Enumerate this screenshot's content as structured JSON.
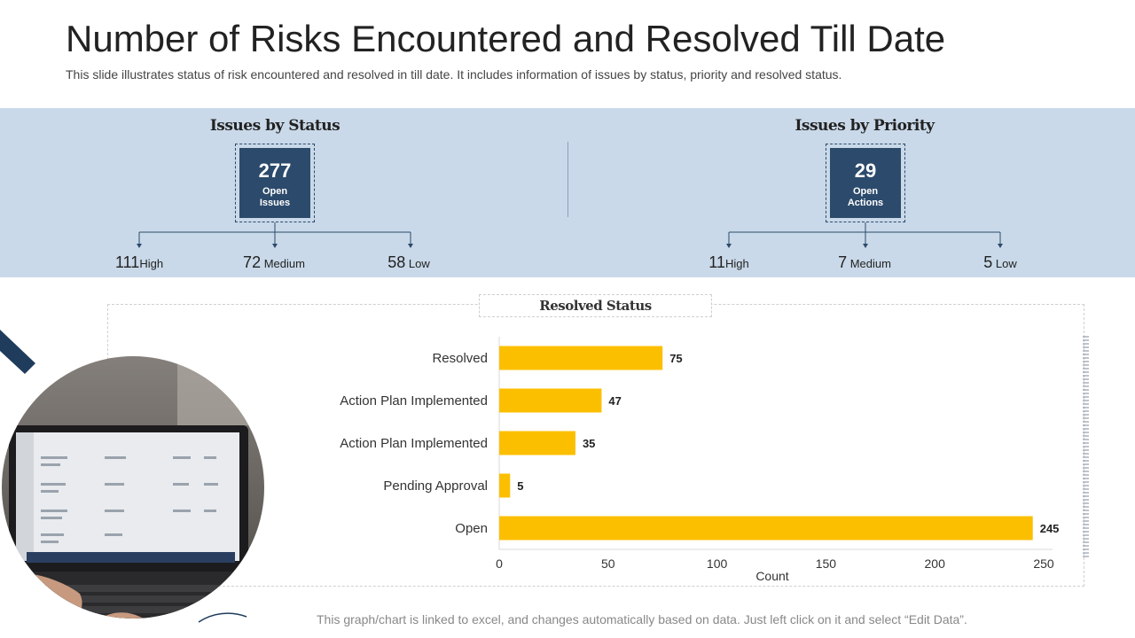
{
  "title": "Number of Risks Encountered and Resolved Till Date",
  "subtitle": "This slide illustrates status of risk encountered and resolved in till date. It includes information of issues by status, priority and resolved status.",
  "status_group": {
    "title": "Issues by Status",
    "kpi_value": "277",
    "kpi_label_1": "Open",
    "kpi_label_2": "Issues",
    "items": [
      {
        "num": "111",
        "label": "High"
      },
      {
        "num": "72",
        "label": " Medium"
      },
      {
        "num": "58",
        "label": " Low"
      }
    ]
  },
  "priority_group": {
    "title": "Issues by Priority",
    "kpi_value": "29",
    "kpi_label_1": "Open",
    "kpi_label_2": "Actions",
    "items": [
      {
        "num": "11",
        "label": "High"
      },
      {
        "num": "7",
        "label": " Medium"
      },
      {
        "num": "5",
        "label": " Low"
      }
    ]
  },
  "chart_title": "Resolved Status",
  "footer": "This graph/chart is linked to excel, and changes automatically based on data.  Just left click on it and select “Edit Data”.",
  "colors": {
    "band": "#c9d9e9",
    "kpi": "#2c4a6b",
    "bar": "#fcbf00"
  },
  "chart_data": {
    "type": "bar",
    "orientation": "horizontal",
    "title": "Resolved Status",
    "categories": [
      "Resolved",
      "Action Plan Implemented",
      "Action Plan Implemented",
      "Pending Approval",
      "Open"
    ],
    "values": [
      75,
      47,
      35,
      5,
      245
    ],
    "xlabel": "Count",
    "ylabel": "",
    "xlim": [
      0,
      250
    ],
    "xticks": [
      0,
      50,
      100,
      150,
      200,
      250
    ],
    "data_labels": true,
    "grid": false
  }
}
